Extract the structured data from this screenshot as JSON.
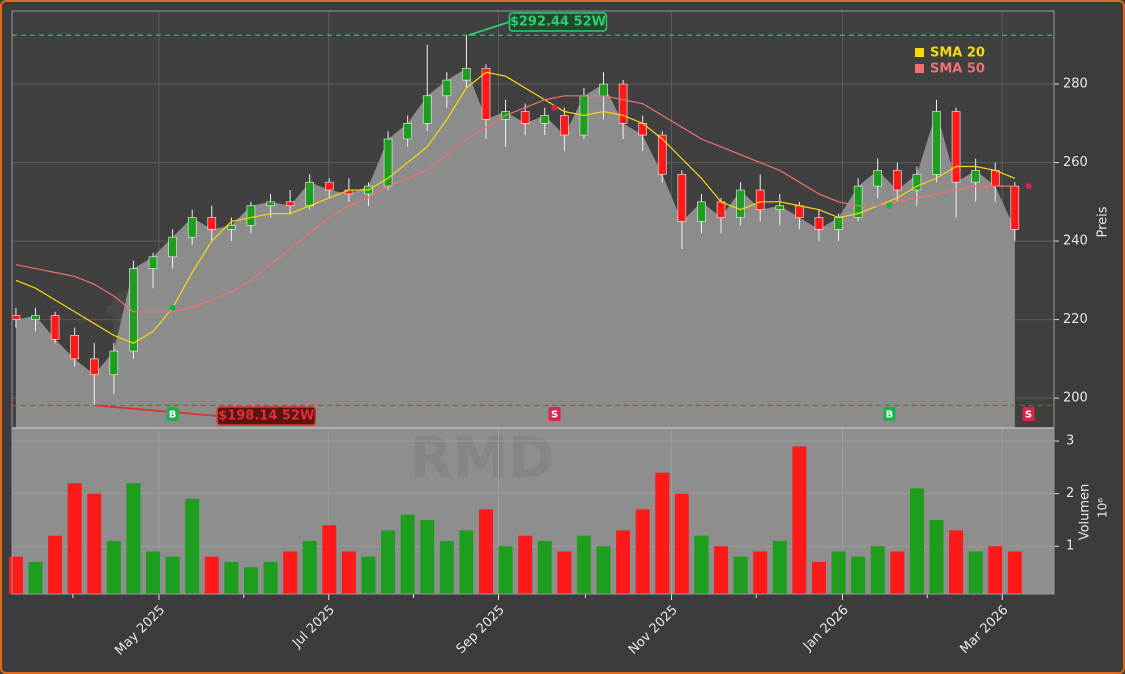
{
  "chart_data": [
    {
      "type": "candlestick",
      "x": [
        0,
        1,
        2,
        3,
        4,
        5,
        6,
        7,
        8,
        9,
        10,
        11,
        12,
        13,
        14,
        15,
        16,
        17,
        18,
        19,
        20,
        21,
        22,
        23,
        24,
        25,
        26,
        27,
        28,
        29,
        30,
        31,
        32,
        33,
        34,
        35,
        36,
        37,
        38,
        39,
        40,
        41,
        42,
        43,
        44,
        45,
        46,
        47,
        48,
        49,
        50,
        51
      ],
      "open": [
        221,
        220,
        221,
        216,
        210,
        206,
        212,
        233,
        236,
        241,
        246,
        243,
        244,
        249,
        250,
        249,
        255,
        253,
        252,
        254,
        266,
        270,
        277,
        281,
        284,
        271,
        273,
        270,
        272,
        267,
        277,
        280,
        270,
        267,
        257,
        245,
        250,
        246,
        253,
        248,
        249,
        246,
        243,
        246,
        254,
        258,
        253,
        257,
        273,
        255,
        258,
        254
      ],
      "high": [
        223,
        223,
        222,
        218,
        214,
        214,
        235,
        237,
        243,
        248,
        249,
        246,
        250,
        252,
        253,
        257,
        256,
        256,
        255,
        268,
        272,
        290,
        283,
        292.44,
        285,
        276,
        275,
        274,
        274,
        279,
        283,
        281,
        272,
        268,
        258,
        252,
        251,
        255,
        257,
        252,
        250,
        248,
        247,
        256,
        261,
        260,
        259,
        276,
        274,
        261,
        260,
        255
      ],
      "low": [
        218,
        217,
        214,
        208,
        198.14,
        201,
        210,
        228,
        233,
        239,
        240,
        240,
        242,
        246,
        247,
        248,
        251,
        250,
        249,
        253,
        264,
        268,
        274,
        279,
        266,
        264,
        267,
        267,
        263,
        266,
        271,
        266,
        263,
        255,
        238,
        242,
        242,
        244,
        245,
        244,
        243,
        240,
        240,
        245,
        251,
        250,
        249,
        255,
        246,
        250,
        250,
        240
      ],
      "close": [
        220,
        221,
        215,
        210,
        206,
        212,
        233,
        236,
        241,
        246,
        243,
        244,
        249,
        250,
        249,
        255,
        253,
        252,
        254,
        266,
        270,
        277,
        281,
        284,
        271,
        273,
        270,
        272,
        267,
        277,
        280,
        270,
        267,
        257,
        245,
        250,
        246,
        253,
        248,
        249,
        246,
        243,
        246,
        254,
        258,
        253,
        257,
        273,
        255,
        258,
        254,
        243
      ],
      "up_color": "#1e9e1e",
      "down_color": "#ff1a1a",
      "area_color": "#8c8c8c",
      "series": [
        {
          "name": "SMA 20",
          "color": "#f5d90a",
          "values": [
            230,
            228,
            225,
            222,
            219,
            216,
            214,
            217,
            223,
            232,
            240,
            245,
            246,
            247,
            247,
            249,
            251,
            253,
            253,
            256,
            260,
            264,
            271,
            279,
            283,
            282,
            279,
            276,
            273,
            272,
            273,
            272,
            270,
            266,
            261,
            256,
            250,
            248,
            250,
            250,
            249,
            248,
            246,
            247,
            249,
            251,
            254,
            256,
            259,
            259,
            258,
            256
          ]
        },
        {
          "name": "SMA 50",
          "color": "#f07070",
          "values": [
            234,
            233,
            232,
            231,
            229,
            226,
            222,
            222,
            222,
            223,
            225,
            227,
            230,
            234,
            238,
            242,
            246,
            249,
            251,
            254,
            256,
            258,
            262,
            266,
            269,
            272,
            274,
            276,
            277,
            277,
            277,
            276,
            275,
            272,
            269,
            266,
            264,
            262,
            260,
            258,
            255,
            252,
            250,
            249,
            249,
            250,
            251,
            252,
            253,
            254,
            254,
            254
          ]
        }
      ],
      "annotations": [
        {
          "text": "$292.44 52W",
          "value": 292.44,
          "x": 23,
          "color": "#2ecc71"
        },
        {
          "text": "$198.14 52W",
          "value": 198.14,
          "x": 4,
          "color": "#e03030"
        }
      ],
      "signals": [
        {
          "x": 8,
          "value": 223,
          "label": "B",
          "color": "#17b24a"
        },
        {
          "x": 27.5,
          "value": 274,
          "label": "S",
          "color": "#e0234e"
        },
        {
          "x": 44.6,
          "value": 249,
          "label": "B",
          "color": "#17b24a"
        },
        {
          "x": 51.7,
          "value": 254,
          "label": "S",
          "color": "#e0234e"
        }
      ],
      "watermark": "forexsignale.trade",
      "ylabel": "Preis",
      "xlim": [
        -0.2,
        53
      ],
      "ylim": [
        192.4,
        298.6
      ],
      "yticks": [
        200,
        220,
        240,
        260,
        280
      ],
      "grid": true
    },
    {
      "type": "bar",
      "x": [
        0,
        1,
        2,
        3,
        4,
        5,
        6,
        7,
        8,
        9,
        10,
        11,
        12,
        13,
        14,
        15,
        16,
        17,
        18,
        19,
        20,
        21,
        22,
        23,
        24,
        25,
        26,
        27,
        28,
        29,
        30,
        31,
        32,
        33,
        34,
        35,
        36,
        37,
        38,
        39,
        40,
        41,
        42,
        43,
        44,
        45,
        46,
        47,
        48,
        49,
        50,
        51
      ],
      "values": [
        0.8,
        0.7,
        1.2,
        2.2,
        2.0,
        1.1,
        2.2,
        0.9,
        0.8,
        1.9,
        0.8,
        0.7,
        0.6,
        0.7,
        0.9,
        1.1,
        1.4,
        0.9,
        0.8,
        1.3,
        1.6,
        1.5,
        1.1,
        1.3,
        1.7,
        1.0,
        1.2,
        1.1,
        0.9,
        1.2,
        1.0,
        1.3,
        1.7,
        2.4,
        2.0,
        1.2,
        1.0,
        0.8,
        0.9,
        1.1,
        2.9,
        0.7,
        0.9,
        0.8,
        1.0,
        0.9,
        2.1,
        1.5,
        1.3,
        0.9,
        1.0,
        0.9
      ],
      "watermark": "RMD",
      "ylabel": "Volumen",
      "scale_label": "10⁶",
      "xlim": [
        -0.2,
        53
      ],
      "ylim": [
        0.09,
        3.25
      ],
      "yticks": [
        1,
        2,
        3
      ],
      "xticks": [
        {
          "value": 7.3,
          "label": "May 2025"
        },
        {
          "value": 15.97,
          "label": "Jul 2025"
        },
        {
          "value": 24.64,
          "label": "Sep 2025"
        },
        {
          "value": 33.47,
          "label": "Nov 2025"
        },
        {
          "value": 42.2,
          "label": "Jan 2026"
        },
        {
          "value": 50.36,
          "label": "Mar 2026"
        }
      ],
      "xminorticks": [
        2.91,
        11.63,
        20.3,
        29.08,
        37.8,
        46.53
      ],
      "grid": true
    }
  ]
}
